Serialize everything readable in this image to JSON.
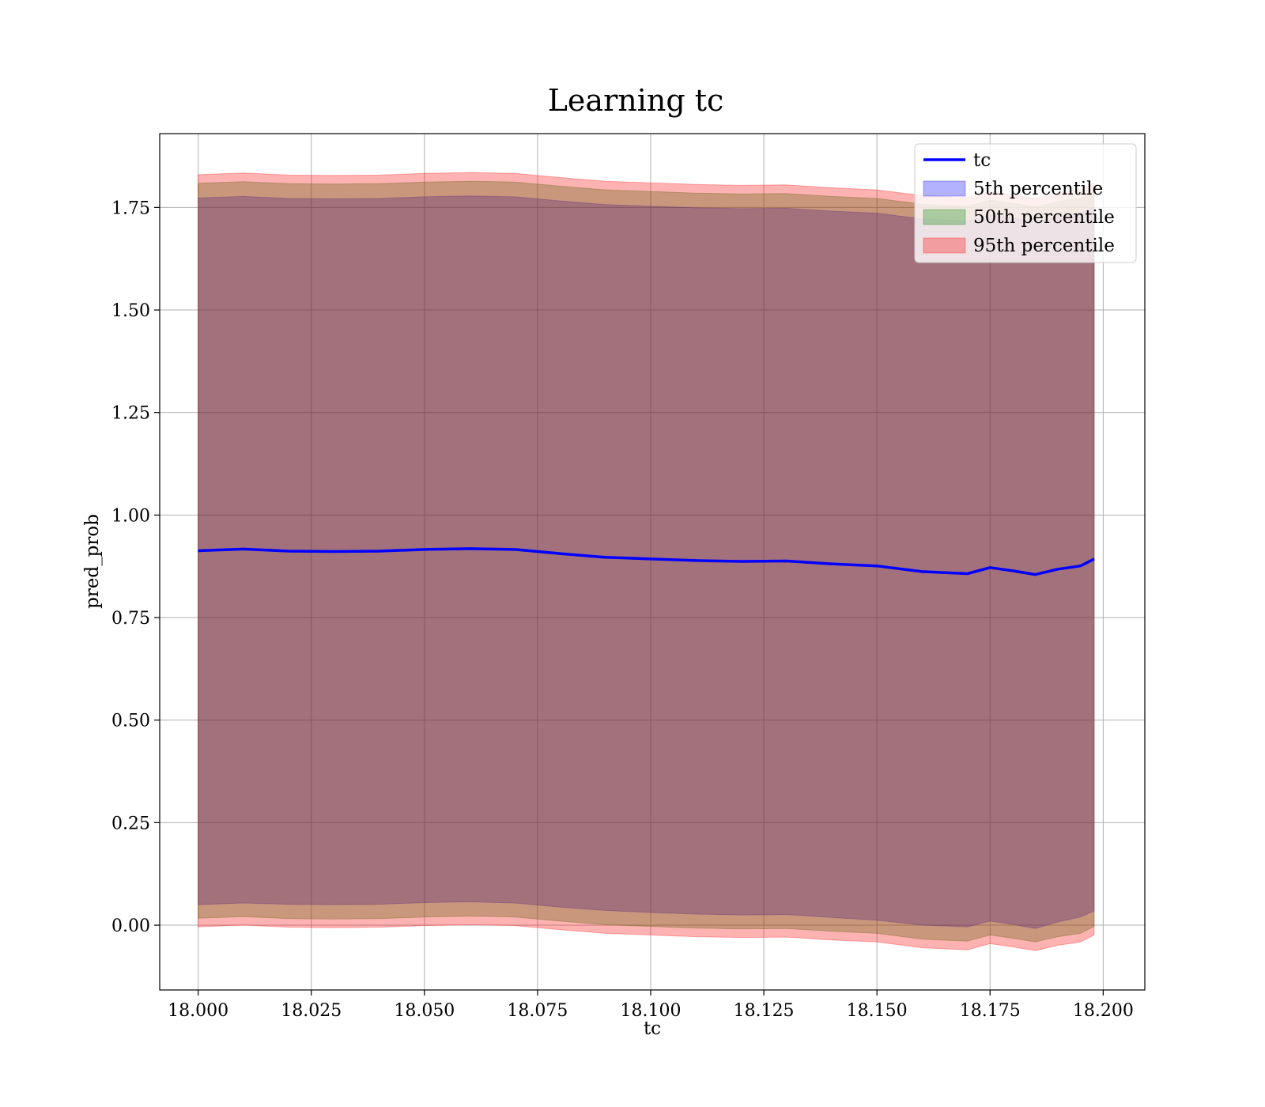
{
  "chart_data": {
    "type": "area",
    "title": "Learning tc",
    "xlabel": "tc",
    "ylabel": "pred_prob",
    "xlim": [
      17.9915,
      18.2092
    ],
    "ylim": [
      -0.158,
      1.93
    ],
    "xticks": [
      18.0,
      18.025,
      18.05,
      18.075,
      18.1,
      18.125,
      18.15,
      18.175,
      18.2
    ],
    "xtick_labels": [
      "18.000",
      "18.025",
      "18.050",
      "18.075",
      "18.100",
      "18.125",
      "18.150",
      "18.175",
      "18.200"
    ],
    "yticks": [
      0.0,
      0.25,
      0.5,
      0.75,
      1.0,
      1.25,
      1.5,
      1.75
    ],
    "ytick_labels": [
      "0.00",
      "0.25",
      "0.50",
      "0.75",
      "1.00",
      "1.25",
      "1.50",
      "1.75"
    ],
    "grid": true,
    "legend_position": "top-right",
    "x": [
      18.0,
      18.01,
      18.02,
      18.03,
      18.04,
      18.05,
      18.06,
      18.07,
      18.08,
      18.09,
      18.1,
      18.11,
      18.12,
      18.13,
      18.14,
      18.15,
      18.16,
      18.17,
      18.175,
      18.18,
      18.185,
      18.19,
      18.195,
      18.198
    ],
    "series": [
      {
        "name": "tc",
        "kind": "line",
        "color": "#0000ff",
        "values": [
          0.913,
          0.917,
          0.912,
          0.911,
          0.912,
          0.916,
          0.918,
          0.916,
          0.906,
          0.897,
          0.893,
          0.889,
          0.887,
          0.888,
          0.881,
          0.876,
          0.862,
          0.857,
          0.872,
          0.864,
          0.855,
          0.868,
          0.876,
          0.893
        ]
      },
      {
        "name": "5th percentile",
        "kind": "band",
        "color": "#0000ff",
        "lower": [
          0.05,
          0.054,
          0.051,
          0.05,
          0.051,
          0.055,
          0.057,
          0.054,
          0.044,
          0.036,
          0.031,
          0.027,
          0.025,
          0.026,
          0.019,
          0.012,
          0.0,
          -0.004,
          0.01,
          0.002,
          -0.008,
          0.008,
          0.02,
          0.035
        ],
        "upper": [
          1.773,
          1.777,
          1.772,
          1.771,
          1.772,
          1.776,
          1.778,
          1.776,
          1.766,
          1.757,
          1.753,
          1.749,
          1.747,
          1.748,
          1.741,
          1.736,
          1.722,
          1.717,
          1.732,
          1.724,
          1.715,
          1.728,
          1.736,
          1.753
        ]
      },
      {
        "name": "50th percentile",
        "kind": "band",
        "color": "#008000",
        "lower": [
          0.017,
          0.021,
          0.016,
          0.015,
          0.016,
          0.02,
          0.022,
          0.02,
          0.01,
          0.001,
          -0.003,
          -0.007,
          -0.009,
          -0.008,
          -0.015,
          -0.02,
          -0.034,
          -0.039,
          -0.024,
          -0.032,
          -0.041,
          -0.028,
          -0.02,
          -0.003
        ],
        "upper": [
          1.809,
          1.813,
          1.808,
          1.807,
          1.808,
          1.812,
          1.814,
          1.812,
          1.802,
          1.793,
          1.789,
          1.785,
          1.783,
          1.784,
          1.777,
          1.772,
          1.758,
          1.753,
          1.768,
          1.76,
          1.751,
          1.764,
          1.772,
          1.789
        ]
      },
      {
        "name": "95th percentile",
        "kind": "band",
        "color": "#ff0000",
        "lower": [
          -0.004,
          0.0,
          -0.005,
          -0.006,
          -0.005,
          -0.001,
          0.001,
          -0.001,
          -0.011,
          -0.02,
          -0.024,
          -0.028,
          -0.03,
          -0.029,
          -0.036,
          -0.041,
          -0.055,
          -0.06,
          -0.045,
          -0.053,
          -0.062,
          -0.049,
          -0.041,
          -0.024
        ],
        "upper": [
          1.83,
          1.834,
          1.829,
          1.828,
          1.829,
          1.833,
          1.835,
          1.833,
          1.823,
          1.814,
          1.81,
          1.806,
          1.804,
          1.805,
          1.798,
          1.793,
          1.779,
          1.774,
          1.789,
          1.781,
          1.772,
          1.785,
          1.793,
          1.81
        ]
      }
    ]
  }
}
